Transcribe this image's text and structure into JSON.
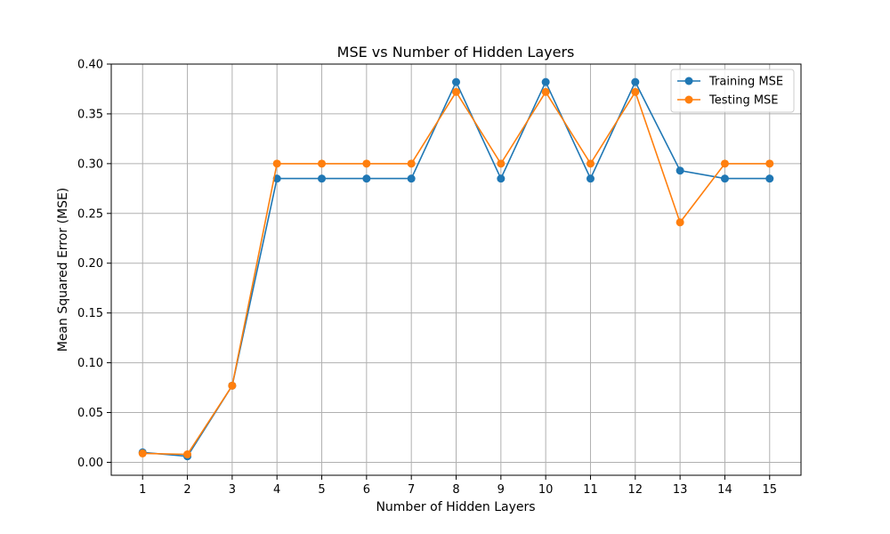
{
  "chart_data": {
    "type": "line",
    "title": "MSE vs Number of Hidden Layers",
    "xlabel": "Number of Hidden Layers",
    "ylabel": "Mean Squared Error (MSE)",
    "x": [
      1,
      2,
      3,
      4,
      5,
      6,
      7,
      8,
      9,
      10,
      11,
      12,
      13,
      14,
      15
    ],
    "xticks": [
      "1",
      "2",
      "3",
      "4",
      "5",
      "6",
      "7",
      "8",
      "9",
      "10",
      "11",
      "12",
      "13",
      "14",
      "15"
    ],
    "xlim": [
      0.3,
      15.7
    ],
    "ylim": [
      -0.013,
      0.4
    ],
    "yticks": [
      "0.00",
      "0.05",
      "0.10",
      "0.15",
      "0.20",
      "0.25",
      "0.30",
      "0.35",
      "0.40"
    ],
    "grid": true,
    "legend_position": "top-right",
    "series": [
      {
        "name": "Training MSE",
        "color": "#1f77b4",
        "marker": "circle",
        "values": [
          0.01,
          0.006,
          0.077,
          0.285,
          0.285,
          0.285,
          0.285,
          0.382,
          0.285,
          0.382,
          0.285,
          0.382,
          0.293,
          0.285,
          0.285
        ]
      },
      {
        "name": "Testing MSE",
        "color": "#ff7f0e",
        "marker": "circle",
        "values": [
          0.009,
          0.008,
          0.077,
          0.3,
          0.3,
          0.3,
          0.3,
          0.372,
          0.3,
          0.372,
          0.3,
          0.372,
          0.241,
          0.3,
          0.3
        ]
      }
    ]
  }
}
